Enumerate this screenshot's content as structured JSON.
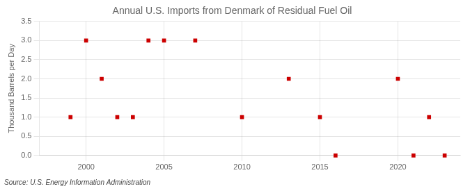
{
  "chart_data": {
    "type": "scatter",
    "title": "Annual U.S. Imports from Denmark of Residual Fuel Oil",
    "ylabel": "Thousand Barrels per Day",
    "annotation": "Source: U.S. Energy Information Administration",
    "x": [
      1999,
      2000,
      2001,
      2002,
      2003,
      2004,
      2005,
      2007,
      2010,
      2013,
      2015,
      2016,
      2020,
      2021,
      2022,
      2023
    ],
    "values": [
      1.0,
      3.0,
      2.0,
      1.0,
      1.0,
      3.0,
      3.0,
      3.0,
      1.0,
      2.0,
      1.0,
      0.0,
      2.0,
      0.0,
      1.0,
      0.0
    ],
    "color": "#cc0000",
    "marker": "square",
    "xlim": [
      1997,
      2024
    ],
    "xticks": [
      2000,
      2005,
      2010,
      2015,
      2020
    ],
    "ylim": [
      0.0,
      3.5
    ],
    "yticks": [
      {
        "value": 0.0,
        "label": "0.0"
      },
      0.5,
      {
        "value": 1.0,
        "label": "1.0"
      },
      1.5,
      {
        "value": 2.0,
        "label": "2.0"
      },
      2.5,
      {
        "value": 3.0,
        "label": "3.0"
      },
      3.5
    ],
    "grid": true
  }
}
